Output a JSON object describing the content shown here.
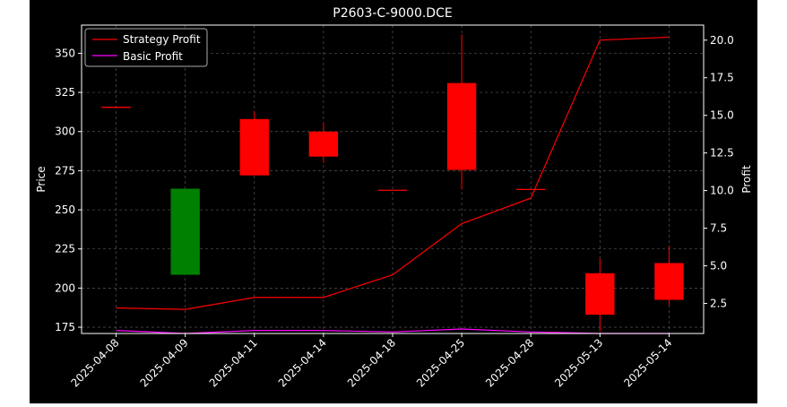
{
  "chart_data": {
    "type": "candlestick",
    "title": "P2603-C-9000.DCE",
    "xlabel": "",
    "ylabel": "Price",
    "y2label": "Profit",
    "categories": [
      "2025-04-08",
      "2025-04-09",
      "2025-04-11",
      "2025-04-14",
      "2025-04-18",
      "2025-04-25",
      "2025-04-28",
      "2025-05-13",
      "2025-05-14"
    ],
    "ylim": [
      171,
      368
    ],
    "y2lim": [
      0.5,
      21.0
    ],
    "yticks": [
      "175",
      "200",
      "225",
      "250",
      "275",
      "300",
      "325",
      "350"
    ],
    "y2ticks": [
      "2.5",
      "5.0",
      "7.5",
      "10.0",
      "12.5",
      "15.0",
      "17.5",
      "20.0"
    ],
    "candles": [
      {
        "open": 315.5,
        "high": 315.5,
        "low": 315.5,
        "close": 315.5
      },
      {
        "open": 208.5,
        "high": 263.5,
        "low": 208.5,
        "close": 263.5
      },
      {
        "open": 308.0,
        "high": 313.0,
        "low": 272.0,
        "close": 272.0
      },
      {
        "open": 300.0,
        "high": 305.5,
        "low": 280.0,
        "close": 284.0
      },
      {
        "open": 262.5,
        "high": 262.5,
        "low": 262.5,
        "close": 262.5
      },
      {
        "open": 331.0,
        "high": 362.0,
        "low": 263.0,
        "close": 275.5
      },
      {
        "open": 263.0,
        "high": 263.0,
        "low": 263.0,
        "close": 263.0
      },
      {
        "open": 209.5,
        "high": 219.0,
        "low": 172.5,
        "close": 183.0
      },
      {
        "open": 216.0,
        "high": 227.0,
        "low": 189.0,
        "close": 192.5
      }
    ],
    "series": [
      {
        "name": "Strategy Profit",
        "axis": "right",
        "color": "#ff0000",
        "values": [
          2.2,
          2.1,
          2.9,
          2.9,
          4.4,
          7.8,
          9.5,
          20.0,
          20.2
        ]
      },
      {
        "name": "Basic Profit",
        "axis": "right",
        "color": "#ff00ff",
        "values": [
          0.7,
          0.5,
          0.7,
          0.7,
          0.6,
          0.8,
          0.6,
          0.5,
          0.5
        ]
      }
    ],
    "colors": {
      "up": "#008000",
      "down": "#ff0000",
      "background": "#000000",
      "grid": "#555555"
    },
    "grid": true,
    "legend_position": "top-left"
  }
}
